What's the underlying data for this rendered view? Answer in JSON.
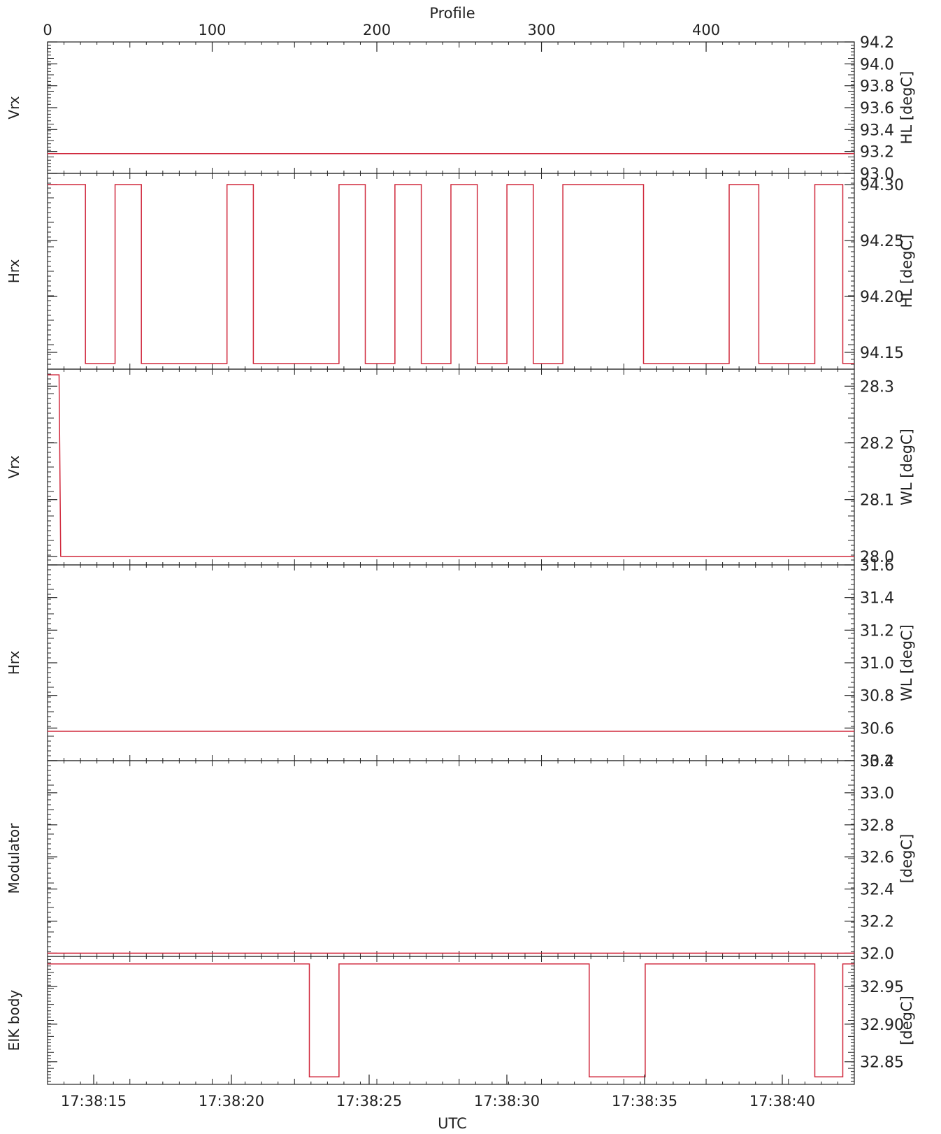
{
  "figure": {
    "top_axis_label": "Profile",
    "top_ticks": [
      "0",
      "100",
      "200",
      "300",
      "400"
    ],
    "bottom_axis_label": "UTC",
    "bottom_ticks": [
      "17:38:15",
      "17:38:20",
      "17:38:25",
      "17:38:30",
      "17:38:35",
      "17:38:40"
    ],
    "line_color": "#d0283c",
    "axis_color": "#222222"
  },
  "chart_data": [
    {
      "type": "line",
      "left_label": "Vrx",
      "right_label": "HL [degC]",
      "ylim": [
        93.0,
        94.2
      ],
      "yticks": [
        "93.0",
        "93.2",
        "93.4",
        "93.6",
        "93.8",
        "94.0",
        "94.2"
      ],
      "series": [
        {
          "x": [
            0,
            490
          ],
          "y": [
            93.18,
            93.18
          ]
        }
      ]
    },
    {
      "type": "line",
      "left_label": "Hrx",
      "right_label": "HL [degC]",
      "ylim": [
        94.135,
        94.31
      ],
      "yticks": [
        "94.15",
        "94.20",
        "94.25",
        "94.30"
      ],
      "series": [
        {
          "x": [
            0,
            23,
            23,
            41,
            41,
            57,
            57,
            109,
            109,
            125,
            125,
            177,
            177,
            193,
            193,
            211,
            211,
            227,
            227,
            245,
            245,
            261,
            261,
            279,
            279,
            295,
            295,
            313,
            313,
            362,
            362,
            414,
            414,
            432,
            432,
            466,
            466,
            483,
            483,
            490
          ],
          "y": [
            94.3,
            94.3,
            94.14,
            94.14,
            94.3,
            94.3,
            94.14,
            94.14,
            94.3,
            94.3,
            94.14,
            94.14,
            94.3,
            94.3,
            94.14,
            94.14,
            94.3,
            94.3,
            94.14,
            94.14,
            94.3,
            94.3,
            94.14,
            94.14,
            94.3,
            94.3,
            94.14,
            94.14,
            94.3,
            94.3,
            94.14,
            94.14,
            94.3,
            94.3,
            94.14,
            94.14,
            94.3,
            94.3,
            94.14,
            94.14
          ]
        }
      ]
    },
    {
      "type": "line",
      "left_label": "Vrx",
      "right_label": "WL [degC]",
      "ylim": [
        27.985,
        28.33
      ],
      "yticks": [
        "28.0",
        "28.1",
        "28.2",
        "28.3"
      ],
      "series": [
        {
          "x": [
            0,
            7,
            8,
            490
          ],
          "y": [
            28.32,
            28.32,
            28.0,
            28.0
          ]
        }
      ]
    },
    {
      "type": "line",
      "left_label": "Hrx",
      "right_label": "WL [degC]",
      "ylim": [
        30.4,
        31.6
      ],
      "yticks": [
        "30.4",
        "30.6",
        "30.8",
        "31.0",
        "31.2",
        "31.4",
        "31.6"
      ],
      "series": [
        {
          "x": [
            0,
            490
          ],
          "y": [
            30.58,
            30.58
          ]
        }
      ]
    },
    {
      "type": "line",
      "left_label": "Modulator",
      "right_label": "[degC]",
      "ylim": [
        31.98,
        33.2
      ],
      "yticks": [
        "32.0",
        "32.2",
        "32.4",
        "32.6",
        "32.8",
        "33.0",
        "33.2"
      ],
      "series": [
        {
          "x": [
            0,
            490
          ],
          "y": [
            32.0,
            32.0
          ]
        }
      ]
    },
    {
      "type": "line",
      "left_label": "EIK body",
      "right_label": "[degC]",
      "ylim": [
        32.82,
        32.99
      ],
      "yticks": [
        "32.85",
        "32.90",
        "32.95"
      ],
      "series": [
        {
          "x": [
            0,
            159,
            159,
            177,
            177,
            329,
            329,
            363,
            363,
            466,
            466,
            483,
            483,
            490
          ],
          "y": [
            32.98,
            32.98,
            32.83,
            32.83,
            32.98,
            32.98,
            32.83,
            32.83,
            32.98,
            32.98,
            32.83,
            32.83,
            32.98,
            32.98
          ]
        }
      ]
    }
  ]
}
